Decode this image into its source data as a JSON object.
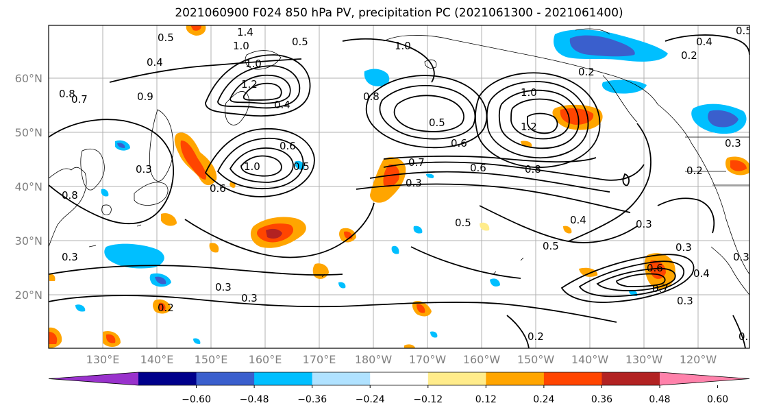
{
  "title": "2021060900 F024 850 hPa PV, precipitation PC (2021061300 - 2021061400)",
  "lat_labels": [
    "60°N",
    "50°N",
    "40°N",
    "30°N",
    "20°N"
  ],
  "lon_labels": [
    "130°E",
    "140°E",
    "150°E",
    "160°E",
    "170°E",
    "180°W",
    "170°W",
    "160°W",
    "150°W",
    "140°W",
    "130°W",
    "120°W"
  ],
  "colorbar": {
    "colors": [
      "#9932cc",
      "#00008b",
      "#3a5fcd",
      "#00bfff",
      "#b0e2ff",
      "#ffffff",
      "#ffec8b",
      "#ffa500",
      "#ff4500",
      "#b22222",
      "#ff82ab"
    ],
    "tick_labels": [
      "−0.60",
      "−0.48",
      "−0.36",
      "−0.24",
      "−0.12",
      "0.12",
      "0.24",
      "0.36",
      "0.48",
      "0.60"
    ]
  },
  "contour_labels": [
    "1.4",
    "1.0",
    "1.0",
    "0.5",
    "0.5",
    "0.4",
    "0.4",
    "0.6",
    "1.2",
    "1.0",
    "0.8",
    "0.7",
    "0.9",
    "1.0",
    "0.5",
    "0.2",
    "0.2",
    "0.4",
    "1.2",
    "0.8",
    "0.6",
    "0.8",
    "0.6",
    "0.3",
    "0.7",
    "0.3",
    "0.5",
    "0.5",
    "0.8",
    "0.3",
    "0.6",
    "0.5",
    "1.0",
    "0.3",
    "0.4",
    "0.3",
    "0.3",
    "0.2",
    "0.2",
    "0.2",
    "0.3",
    "0.5",
    "0.3",
    "0.6",
    "0.7",
    "0.3",
    "0.4",
    "0.2",
    "0.3"
  ]
}
